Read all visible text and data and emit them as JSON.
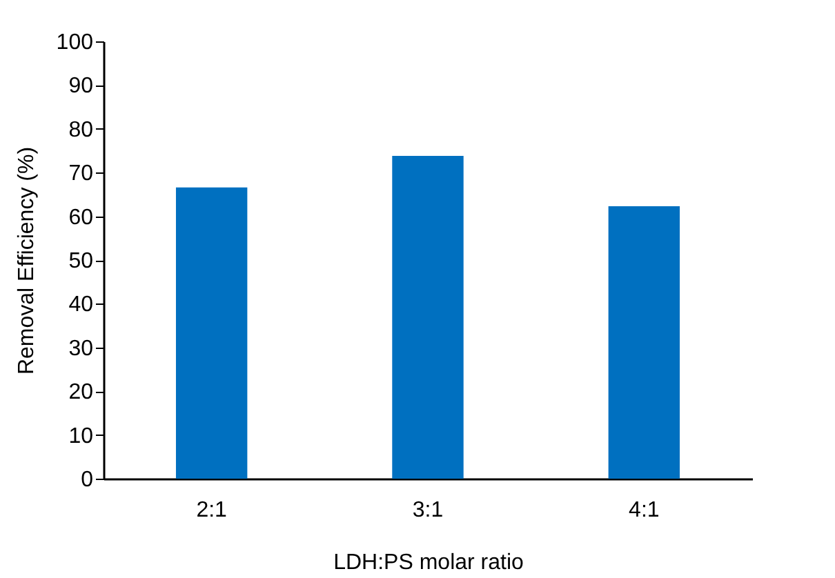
{
  "chart_data": {
    "type": "bar",
    "xlabel": "LDH:PS molar ratio",
    "ylabel": "Removal Efficiency (%)",
    "categories": [
      "2:1",
      "3:1",
      "4:1"
    ],
    "values": [
      66.6,
      73.8,
      62.3
    ],
    "color": "#0070c0",
    "ylim": [
      0,
      100
    ],
    "yticks": [
      0,
      10,
      20,
      30,
      40,
      50,
      60,
      70,
      80,
      90,
      100
    ],
    "grid": false
  }
}
